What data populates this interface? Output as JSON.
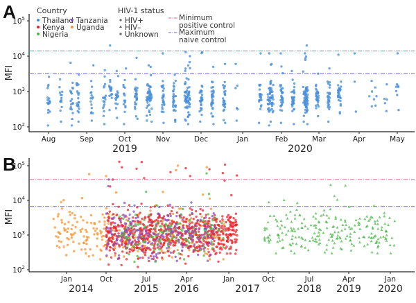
{
  "legend": {
    "country_title": "Country",
    "countries": [
      {
        "name": "Thailand",
        "color": "#4a90d9"
      },
      {
        "name": "Kenya",
        "color": "#e8242b"
      },
      {
        "name": "Nigeria",
        "color": "#4cb84a"
      },
      {
        "name": "Tanzania",
        "color": "#8a4fc6"
      },
      {
        "name": "Uganda",
        "color": "#f7932e"
      }
    ],
    "status_title": "HIV-1 status",
    "statuses": [
      {
        "name": "HIV+",
        "marker": "circle"
      },
      {
        "name": "HIV–",
        "marker": "triangle"
      },
      {
        "name": "Unknown",
        "marker": "square"
      }
    ],
    "lines": [
      {
        "line1": "Minimum",
        "line2": "positive control",
        "color": "#e75b9c"
      },
      {
        "line1": "Maximum",
        "line2": "naive control",
        "color": "#6f66d6"
      }
    ]
  },
  "chart_data": [
    {
      "panel": "A",
      "type": "scatter",
      "ylabel": "MFI",
      "yscale": "log",
      "ylim": [
        100,
        100000
      ],
      "yticks": [
        "10^2",
        "10^3",
        "10^4",
        "10^5"
      ],
      "xticks": [
        "Aug",
        "Sep",
        "Oct",
        "Nov",
        "Dec",
        "Jan",
        "Feb",
        "Mar",
        "Apr",
        "May"
      ],
      "year_labels": [
        {
          "label": "2019",
          "under": "Oct"
        },
        {
          "label": "2020",
          "under": "Feb-Mar"
        }
      ],
      "min_positive_control": 14000,
      "max_naive_control": 3200,
      "series": [
        {
          "name": "Thailand",
          "status": "Unknown",
          "color": "#4a90d9",
          "description": "Weekly clusters of samples from Aug 2019 to May 2020, mostly between 10^2 and 3x10^3 MFI, a few up to ~2x10^4",
          "clusters": [
            {
              "x": "Aug",
              "offset_weeks": 0,
              "n": 18,
              "range": [
                110,
                2600
              ]
            },
            {
              "x": "Aug",
              "offset_weeks": 1.4,
              "n": 14,
              "range": [
                140,
                2200
              ]
            },
            {
              "x": "Aug",
              "offset_weeks": 2.6,
              "n": 20,
              "range": [
                110,
                6500
              ]
            },
            {
              "x": "Sep",
              "offset_weeks": -1,
              "n": 22,
              "range": [
                140,
                3000
              ]
            },
            {
              "x": "Sep",
              "offset_weeks": 0.6,
              "n": 16,
              "range": [
                150,
                5500
              ]
            },
            {
              "x": "Sep",
              "offset_weeks": 2,
              "n": 18,
              "range": [
                120,
                4000
              ]
            },
            {
              "x": "Sep",
              "offset_weeks": 3.4,
              "n": 18,
              "range": [
                180,
                3800
              ]
            },
            {
              "x": "Oct",
              "offset_weeks": -1.6,
              "n": 18,
              "range": [
                300,
                20000
              ]
            },
            {
              "x": "Oct",
              "offset_weeks": 0,
              "n": 16,
              "range": [
                120,
                4500
              ]
            },
            {
              "x": "Oct",
              "offset_weeks": 1.3,
              "n": 28,
              "range": [
                170,
                9000
              ]
            },
            {
              "x": "Oct",
              "offset_weeks": 2.6,
              "n": 24,
              "range": [
                150,
                5500
              ]
            },
            {
              "x": "Nov",
              "offset_weeks": -1.4,
              "n": 24,
              "range": [
                140,
                5000
              ]
            },
            {
              "x": "Nov",
              "offset_weeks": 0,
              "n": 26,
              "range": [
                130,
                12000
              ]
            },
            {
              "x": "Nov",
              "offset_weeks": 1.3,
              "n": 30,
              "range": [
                140,
                3000
              ]
            },
            {
              "x": "Nov",
              "offset_weeks": 2.6,
              "n": 30,
              "range": [
                150,
                13000
              ]
            },
            {
              "x": "Dec",
              "offset_weeks": -1.4,
              "n": 36,
              "range": [
                120,
                10000
              ]
            },
            {
              "x": "Dec",
              "offset_weeks": 0,
              "n": 30,
              "range": [
                140,
                13000
              ]
            },
            {
              "x": "Dec",
              "offset_weeks": 1.3,
              "n": 32,
              "range": [
                120,
                5000
              ]
            },
            {
              "x": "Dec",
              "offset_weeks": 2.6,
              "n": 28,
              "range": [
                130,
                6000
              ]
            },
            {
              "x": "Dec",
              "offset_weeks": 4,
              "n": 6,
              "range": [
                150,
                6000
              ]
            },
            {
              "x": "Jan",
              "offset_weeks": 2,
              "n": 22,
              "range": [
                130,
                12000
              ]
            },
            {
              "x": "Jan",
              "offset_weeks": 3.3,
              "n": 26,
              "range": [
                140,
                6000
              ]
            },
            {
              "x": "Feb",
              "offset_weeks": -1.4,
              "n": 28,
              "range": [
                110,
                12000
              ]
            },
            {
              "x": "Feb",
              "offset_weeks": 0,
              "n": 32,
              "range": [
                130,
                12000
              ]
            },
            {
              "x": "Feb",
              "offset_weeks": 1.3,
              "n": 30,
              "range": [
                120,
                3800
              ]
            },
            {
              "x": "Feb",
              "offset_weeks": 2.6,
              "n": 20,
              "range": [
                140,
                12000
              ]
            },
            {
              "x": "Mar",
              "offset_weeks": -1.4,
              "n": 40,
              "range": [
                120,
                20000
              ]
            },
            {
              "x": "Mar",
              "offset_weeks": -0.2,
              "n": 28,
              "range": [
                200,
                3200
              ]
            },
            {
              "x": "Mar",
              "offset_weeks": 1.1,
              "n": 26,
              "range": [
                140,
                4500
              ]
            },
            {
              "x": "Mar",
              "offset_weeks": 2.3,
              "n": 24,
              "range": [
                240,
                11000
              ]
            },
            {
              "x": "Apr",
              "offset_weeks": -2.2,
              "n": 4,
              "range": [
                260,
                1900
              ]
            },
            {
              "x": "Apr",
              "offset_weeks": -0.4,
              "n": 3,
              "range": [
                270,
                12000
              ]
            },
            {
              "x": "Apr",
              "offset_weeks": 1.8,
              "n": 4,
              "range": [
                400,
                1300
              ]
            },
            {
              "x": "May",
              "offset_weeks": -3,
              "n": 4,
              "range": [
                380,
                2000
              ]
            },
            {
              "x": "May",
              "offset_weeks": -1.3,
              "n": 5,
              "range": [
                280,
                1600
              ]
            },
            {
              "x": "May",
              "offset_weeks": 0,
              "n": 8,
              "range": [
                300,
                12000
              ]
            }
          ]
        }
      ]
    },
    {
      "panel": "B",
      "type": "scatter",
      "ylabel": "MFI",
      "yscale": "log",
      "ylim": [
        100,
        100000
      ],
      "yticks": [
        "10^2",
        "10^3",
        "10^4",
        "10^5"
      ],
      "xticks": [
        "Jan",
        "Oct",
        "Jul",
        "Apr",
        "Jan",
        "Oct",
        "Jul",
        "Apr",
        "Jan"
      ],
      "year_labels": [
        "2014",
        "2015",
        "2016",
        "2017",
        "2018",
        "2019",
        "2020"
      ],
      "min_positive_control": 40000,
      "max_naive_control": 6700,
      "series": [
        {
          "name": "Uganda",
          "status": "HIV+",
          "color": "#f7932e",
          "xrange": [
            "2013-10",
            "2016-12"
          ],
          "n": 300,
          "yrange": [
            200,
            100000
          ]
        },
        {
          "name": "Kenya",
          "status": "HIV+",
          "color": "#e8242b",
          "xrange": [
            "2014-10",
            "2017-03"
          ],
          "n": 700,
          "yrange": [
            120,
            130000
          ]
        },
        {
          "name": "Tanzania",
          "status": "HIV+",
          "color": "#8a4fc6",
          "xrange": [
            "2014-10",
            "2016-10"
          ],
          "n": 220,
          "yrange": [
            180,
            40000
          ]
        },
        {
          "name": "Nigeria",
          "status": "HIV+",
          "color": "#4cb84a",
          "xrange": [
            "2015-01",
            "2016-12"
          ],
          "n": 120,
          "yrange": [
            170,
            60000
          ]
        },
        {
          "name": "Nigeria",
          "status": "HIV–",
          "color": "#4cb84a",
          "xrange": [
            "2017-09",
            "2020-02"
          ],
          "n": 230,
          "yrange": [
            300,
            28000
          ]
        }
      ]
    }
  ]
}
